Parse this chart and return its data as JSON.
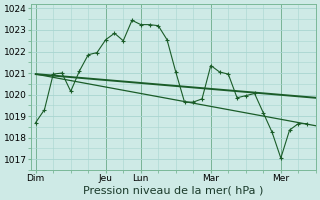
{
  "title": "Pression niveau de la mer( hPa )",
  "bg_color": "#ceeae6",
  "grid_color": "#a8d5d0",
  "line_color": "#1a5c28",
  "ylim": [
    1016.5,
    1024.2
  ],
  "yticks": [
    1017,
    1018,
    1019,
    1020,
    1021,
    1022,
    1023,
    1024
  ],
  "day_labels": [
    "Dim",
    "",
    "Jeu",
    "Lun",
    "",
    "Mar",
    "",
    "Mer"
  ],
  "xtick_labels": [
    "Dim",
    "Jeu",
    "Lun",
    "Mar",
    "Mer"
  ],
  "xtick_positions": [
    0,
    8,
    12,
    20,
    28
  ],
  "xlim": [
    -0.5,
    32
  ],
  "series1_x": [
    0,
    1,
    2,
    3,
    4,
    5,
    6,
    7,
    8,
    9,
    10,
    11,
    12,
    13,
    14,
    15,
    16,
    17,
    18,
    19,
    20,
    21,
    22,
    23,
    24,
    25,
    26,
    27,
    28,
    29,
    30,
    31
  ],
  "series1_y": [
    1018.7,
    1019.3,
    1020.95,
    1021.0,
    1020.15,
    1021.1,
    1021.85,
    1021.95,
    1022.55,
    1022.85,
    1022.5,
    1023.45,
    1023.25,
    1023.25,
    1023.2,
    1022.55,
    1021.05,
    1019.65,
    1019.65,
    1019.8,
    1021.35,
    1021.05,
    1020.95,
    1019.85,
    1019.95,
    1020.05,
    1019.15,
    1018.25,
    1017.05,
    1018.35,
    1018.65,
    1018.65
  ],
  "series2_x": [
    0,
    32
  ],
  "series2_y": [
    1020.95,
    1019.85
  ],
  "series3_x": [
    0,
    32
  ],
  "series3_y": [
    1020.95,
    1018.55
  ],
  "tick_fontsize": 6.5,
  "xlabel_fontsize": 8
}
